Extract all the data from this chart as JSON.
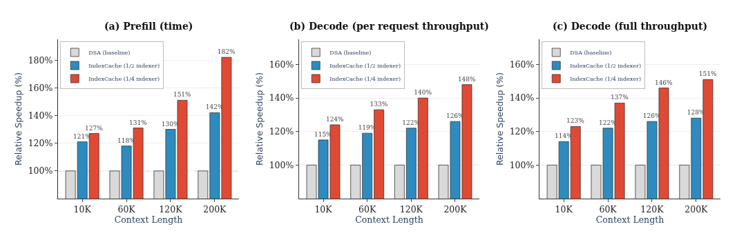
{
  "chart_data": [
    {
      "type": "bar",
      "title": "(a) Prefill (time)",
      "xlabel": "Context Length",
      "ylabel": "Relative Speedup (%)",
      "categories": [
        "10K",
        "60K",
        "120K",
        "200K"
      ],
      "series": [
        {
          "name": "DSA (baseline)",
          "color": "#d9d9d9",
          "values": [
            100,
            100,
            100,
            100
          ],
          "value_labels": [
            null,
            null,
            null,
            null
          ]
        },
        {
          "name": "IndexCache (1/2 indexer)",
          "color": "#2e8bc0",
          "values": [
            121,
            118,
            130,
            142
          ],
          "value_labels": [
            "121%",
            "118%",
            "130%",
            "142%"
          ]
        },
        {
          "name": "IndexCache (1/4 indexer)",
          "color": "#e04a34",
          "values": [
            127,
            131,
            151,
            182
          ],
          "value_labels": [
            "127%",
            "131%",
            "151%",
            "182%"
          ]
        }
      ],
      "ylim": [
        80,
        195
      ],
      "yticks": [
        {
          "value": 100,
          "label": "100%"
        },
        {
          "value": 120,
          "label": "120%"
        },
        {
          "value": 140,
          "label": "140%"
        },
        {
          "value": 160,
          "label": "160%"
        },
        {
          "value": 180,
          "label": "180%"
        }
      ],
      "ref_lines": [
        {
          "axis": "y",
          "value": 100,
          "color": "#aaaaaa",
          "line_style": "dashed"
        }
      ],
      "grid": "y",
      "legend": "top left"
    },
    {
      "type": "bar",
      "title": "(b) Decode (per request throughput)",
      "xlabel": "Context Length",
      "ylabel": "Relative Speedup (%)",
      "categories": [
        "10K",
        "60K",
        "120K",
        "200K"
      ],
      "series": [
        {
          "name": "DSA (baseline)",
          "color": "#d9d9d9",
          "values": [
            100,
            100,
            100,
            100
          ],
          "value_labels": [
            null,
            null,
            null,
            null
          ]
        },
        {
          "name": "IndexCache (1/2 indexer)",
          "color": "#2e8bc0",
          "values": [
            115,
            119,
            122,
            126
          ],
          "value_labels": [
            "115%",
            "119%",
            "122%",
            "126%"
          ]
        },
        {
          "name": "IndexCache (1/4 indexer)",
          "color": "#e04a34",
          "values": [
            124,
            133,
            140,
            148
          ],
          "value_labels": [
            "124%",
            "133%",
            "140%",
            "148%"
          ]
        }
      ],
      "ylim": [
        80,
        175
      ],
      "yticks": [
        {
          "value": 100,
          "label": "100%"
        },
        {
          "value": 120,
          "label": "120%"
        },
        {
          "value": 140,
          "label": "140%"
        },
        {
          "value": 160,
          "label": "160%"
        }
      ],
      "ref_lines": [
        {
          "axis": "y",
          "value": 100,
          "color": "#aaaaaa",
          "line_style": "dashed"
        }
      ],
      "grid": "y",
      "legend": "top left"
    },
    {
      "type": "bar",
      "title": "(c) Decode (full throughput)",
      "xlabel": "Context Length",
      "ylabel": "Relative Speedup (%)",
      "categories": [
        "10K",
        "60K",
        "120K",
        "200K"
      ],
      "series": [
        {
          "name": "DSA (baseline)",
          "color": "#d9d9d9",
          "values": [
            100,
            100,
            100,
            100
          ],
          "value_labels": [
            null,
            null,
            null,
            null
          ]
        },
        {
          "name": "IndexCache (1/2 indexer)",
          "color": "#2e8bc0",
          "values": [
            114,
            122,
            126,
            128
          ],
          "value_labels": [
            "114%",
            "122%",
            "126%",
            "128%"
          ]
        },
        {
          "name": "IndexCache (1/4 indexer)",
          "color": "#e04a34",
          "values": [
            123,
            137,
            146,
            151
          ],
          "value_labels": [
            "123%",
            "137%",
            "146%",
            "151%"
          ]
        }
      ],
      "ylim": [
        80,
        175
      ],
      "yticks": [
        {
          "value": 100,
          "label": "100%"
        },
        {
          "value": 120,
          "label": "120%"
        },
        {
          "value": 140,
          "label": "140%"
        },
        {
          "value": 160,
          "label": "160%"
        }
      ],
      "ref_lines": [
        {
          "axis": "y",
          "value": 100,
          "color": "#aaaaaa",
          "line_style": "dashed"
        }
      ],
      "grid": "y",
      "legend": "top left"
    }
  ]
}
